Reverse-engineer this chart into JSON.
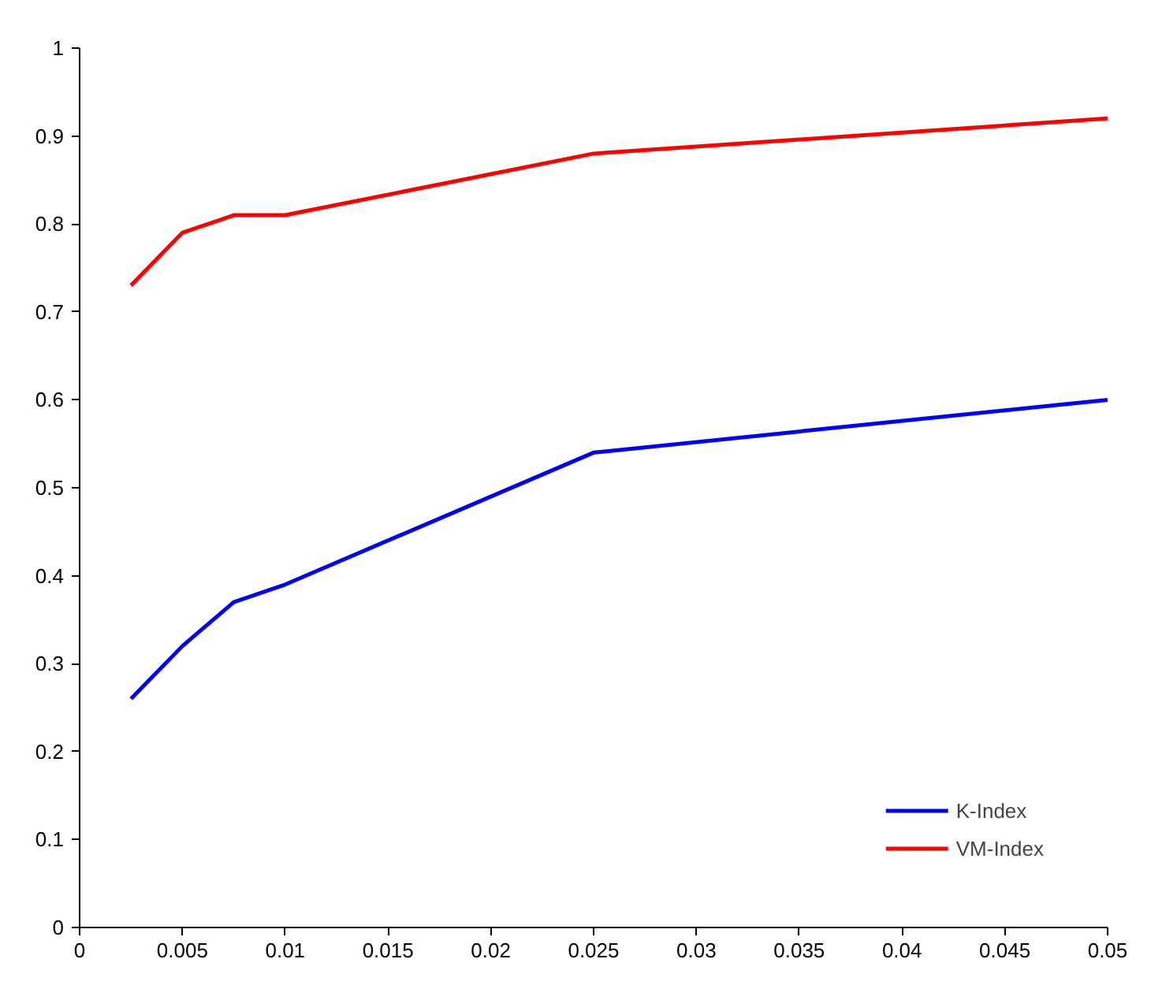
{
  "chart_data": {
    "type": "line",
    "x": [
      0.0025,
      0.005,
      0.0075,
      0.01,
      0.025,
      0.05
    ],
    "series": [
      {
        "name": "K-Index",
        "color": "#0000ff",
        "values": [
          0.26,
          0.32,
          0.37,
          0.39,
          0.54,
          0.6
        ]
      },
      {
        "name": "VM-Index",
        "color": "#ff0000",
        "values": [
          0.73,
          0.79,
          0.81,
          0.81,
          0.88,
          0.92
        ]
      }
    ],
    "xlim": [
      0,
      0.05
    ],
    "ylim": [
      0,
      1
    ],
    "xticks": [
      0,
      0.005,
      0.01,
      0.015,
      0.02,
      0.025,
      0.03,
      0.035,
      0.04,
      0.045,
      0.05
    ],
    "yticks": [
      0,
      0.1,
      0.2,
      0.3,
      0.4,
      0.5,
      0.6,
      0.7,
      0.8,
      0.9,
      1
    ],
    "grid": false,
    "legend": "bottom right",
    "marker": "none",
    "line_style": "solid"
  }
}
